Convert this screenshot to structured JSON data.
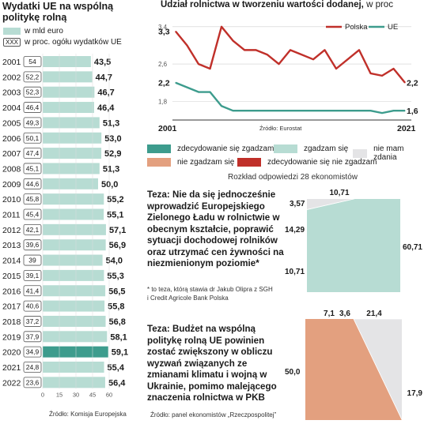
{
  "left_panel": {
    "title": "Wydatki UE na wspólną politykę rolną",
    "legend": {
      "bar_label": "w mld euro",
      "box_sample": "XXX",
      "box_label": "w proc. ogółu wydatków UE"
    },
    "source": "Źródło: Komisja Europejska",
    "colors": {
      "bar": "#b7dcd3",
      "highlight": "#3d9c8d"
    }
  },
  "top_chart_header": {
    "title": "Udział rolnictwa w tworzeniu wartości dodanej,",
    "unit": "w proc"
  },
  "top_chart_source": "Źródło: Eurostat",
  "survey": {
    "legend": [
      {
        "label": "zdecydowanie się zgadzam",
        "color": "#3d9c8d"
      },
      {
        "label": "zgadzam się",
        "color": "#b7dcd3"
      },
      {
        "label": "nie mam zdania",
        "color": "#e4e4e6"
      },
      {
        "label": "nie zgadzam się",
        "color": "#e3a07f"
      },
      {
        "label": "zdecydowanie się nie zgadzam",
        "color": "#c0302a"
      }
    ],
    "subtitle": "Rozkład odpowiedzi 28 ekonomistów",
    "thesis1": "Teza: Nie da się jednocześnie wprowadzić Europejskiego Zielonego Ładu w rolnictwie w obecnym kształcie, poprawić sytuacji dochodowej rolników oraz utrzymać cen żywności na niezmienionym poziomie*",
    "thesis1_note": "* to teza, którą stawia dr Jakub Olipra z SGH i Credit Agricole Bank Polska",
    "thesis2": "Teza:  Budżet na wspólną politykę rolną UE powinien zostać zwiększony w obliczu wyzwań związanych ze zmianami klimatu i wojną w Ukrainie, pomimo malejącego znaczenia rolnictwa w PKB",
    "source": "Źródło: panel ekonomistów „Rzeczpospolitej”"
  },
  "chart_data": [
    {
      "type": "bar",
      "orientation": "horizontal",
      "title": "Wydatki UE na wspólną politykę rolną",
      "unit": "w mld euro",
      "categories": [
        "2001",
        "2002",
        "2003",
        "2004",
        "2005",
        "2006",
        "2007",
        "2008",
        "2009",
        "2010",
        "2011",
        "2012",
        "2013",
        "2014",
        "2015",
        "2016",
        "2017",
        "2018",
        "2019",
        "2020",
        "2021",
        "2022"
      ],
      "values": [
        43.5,
        44.7,
        46.7,
        46.4,
        51.3,
        53.0,
        52.9,
        51.3,
        50.0,
        55.2,
        55.1,
        57.1,
        56.9,
        54.0,
        55.3,
        56.5,
        55.8,
        56.8,
        58.1,
        59.1,
        55.4,
        56.4
      ],
      "value_labels": [
        "43,5",
        "44,7",
        "46,7",
        "46,4",
        "51,3",
        "53,0",
        "52,9",
        "51,3",
        "50,0",
        "55,2",
        "55,1",
        "57,1",
        "56,9",
        "54,0",
        "55,3",
        "56,5",
        "55,8",
        "56,8",
        "58,1",
        "59,1",
        "55,4",
        "56,4"
      ],
      "share_of_eu_spending": [
        "54",
        "52,2",
        "52,3",
        "46,4",
        "49,3",
        "50,1",
        "47,4",
        "45,1",
        "44,6",
        "45,8",
        "45,4",
        "42,1",
        "39,6",
        "39",
        "39,1",
        "41,4",
        "40,6",
        "37,2",
        "37,9",
        "34,9",
        "24,8",
        "23,6"
      ],
      "highlight": "2020",
      "xlim": [
        0,
        60
      ],
      "xticks": [
        "0",
        "15",
        "30",
        "45",
        "60"
      ]
    },
    {
      "type": "line",
      "title": "Udział rolnictwa w tworzeniu wartości dodanej",
      "unit": "w proc",
      "x": [
        2001,
        2002,
        2003,
        2004,
        2005,
        2006,
        2007,
        2008,
        2009,
        2010,
        2011,
        2012,
        2013,
        2014,
        2015,
        2016,
        2017,
        2018,
        2019,
        2020,
        2021
      ],
      "series": [
        {
          "name": "Polska",
          "color": "#c0302a",
          "values": [
            3.3,
            3.0,
            2.6,
            2.5,
            3.4,
            3.1,
            2.9,
            2.9,
            2.8,
            2.6,
            2.9,
            2.8,
            2.7,
            2.9,
            2.5,
            2.7,
            2.9,
            2.4,
            2.35,
            2.5,
            2.2
          ]
        },
        {
          "name": "UE",
          "color": "#3d9c8d",
          "values": [
            2.2,
            2.1,
            2.0,
            2.0,
            1.7,
            1.6,
            1.6,
            1.6,
            1.6,
            1.6,
            1.6,
            1.6,
            1.6,
            1.6,
            1.6,
            1.6,
            1.6,
            1.6,
            1.55,
            1.6,
            1.6
          ]
        }
      ],
      "yticks": [
        "1,8",
        "2,6",
        "3,4"
      ],
      "ylim": [
        1.4,
        3.6
      ],
      "xlabels": [
        "2001",
        "2021"
      ],
      "end_labels": {
        "Polska_start": "3,3",
        "Polska_end": "2,2",
        "UE_start": "2,2",
        "UE_end": "1,6"
      }
    },
    {
      "type": "pie",
      "title": "Teza: Nie da się jednocześnie wprowadzić Europejskiego Zielonego Ładu...",
      "slices": [
        {
          "label": "zdecydowanie się zgadzam",
          "value": 10.71,
          "display": "10,71",
          "color": "#3d9c8d"
        },
        {
          "label": "zgadzam się",
          "value": 60.71,
          "display": "60,71",
          "color": "#b7dcd3"
        },
        {
          "label": "nie mam zdania",
          "value": 10.71,
          "display": "10,71",
          "color": "#e4e4e6"
        },
        {
          "label": "nie zgadzam się",
          "value": 14.29,
          "display": "14,29",
          "color": "#e3a07f"
        },
        {
          "label": "zdecydowanie się nie zgadzam",
          "value": 3.57,
          "display": "3,57",
          "color": "#c0302a"
        }
      ]
    },
    {
      "type": "pie",
      "title": "Teza: Budżet na wspólną politykę rolną UE powinien zostać zwiększony...",
      "slices": [
        {
          "label": "zdecydowanie się zgadzam",
          "value": 3.6,
          "display": "3,6",
          "color": "#3d9c8d"
        },
        {
          "label": "zgadzam się",
          "value": 21.4,
          "display": "21,4",
          "color": "#b7dcd3"
        },
        {
          "label": "nie mam zdania",
          "value": 17.9,
          "display": "17,9",
          "color": "#e4e4e6"
        },
        {
          "label": "nie zgadzam się",
          "value": 50.0,
          "display": "50,0",
          "color": "#e3a07f"
        },
        {
          "label": "zdecydowanie się nie zgadzam",
          "value": 7.1,
          "display": "7,1",
          "color": "#c0302a"
        }
      ]
    }
  ]
}
